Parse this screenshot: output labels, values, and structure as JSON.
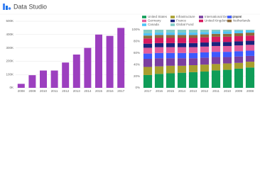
{
  "header": {
    "title": "Data Studio"
  },
  "chart_data": [
    {
      "type": "bar",
      "color": "#9c3fbf",
      "categories": [
        "2008",
        "2009",
        "2010",
        "2011",
        "2012",
        "2013",
        "2014",
        "2015",
        "2016",
        "2017"
      ],
      "values": [
        30000,
        95000,
        130000,
        130000,
        190000,
        250000,
        300000,
        400000,
        390000,
        450000
      ],
      "ylim": [
        0,
        500000
      ],
      "yticks": [
        {
          "value": 0,
          "label": "0K"
        },
        {
          "value": 100000,
          "label": "100K"
        },
        {
          "value": 200000,
          "label": "200K"
        },
        {
          "value": 300000,
          "label": "300K"
        },
        {
          "value": 400000,
          "label": "400K"
        },
        {
          "value": 500000,
          "label": "500K"
        }
      ],
      "grid": true
    },
    {
      "type": "bar",
      "stacked": true,
      "legend": "top",
      "categories": [
        "2017",
        "2016",
        "2015",
        "2014",
        "2013",
        "2012",
        "2011",
        "2010",
        "2009",
        "2008"
      ],
      "series": [
        {
          "name": "United States",
          "color": "#0f9d58",
          "values": [
            22,
            24,
            25,
            26,
            27,
            28,
            30,
            31,
            33,
            35
          ]
        },
        {
          "name": "Infrastructure",
          "color": "#a89f2e",
          "values": [
            14,
            13,
            13,
            12,
            12,
            12,
            11,
            11,
            10,
            10
          ]
        },
        {
          "name": "International Development",
          "color": "#7b3fa0",
          "values": [
            14,
            14,
            13,
            13,
            12,
            12,
            12,
            11,
            11,
            10
          ]
        },
        {
          "name": "Japan",
          "color": "#3d5afe",
          "values": [
            9,
            9,
            9,
            9,
            9,
            9,
            9,
            9,
            9,
            9
          ]
        },
        {
          "name": "Germany",
          "color": "#e35d9b",
          "values": [
            10,
            10,
            10,
            10,
            10,
            10,
            10,
            10,
            10,
            10
          ]
        },
        {
          "name": "France",
          "color": "#1a237e",
          "values": [
            7,
            7,
            7,
            7,
            7,
            7,
            7,
            7,
            7,
            7
          ]
        },
        {
          "name": "United Kingdom",
          "color": "#d81b60",
          "values": [
            9,
            9,
            9,
            9,
            9,
            9,
            9,
            9,
            9,
            9
          ]
        },
        {
          "name": "Netherlands",
          "color": "#8e6c3c",
          "values": [
            5,
            5,
            5,
            5,
            5,
            5,
            5,
            5,
            5,
            5
          ]
        },
        {
          "name": "Canada",
          "color": "#4fc3f7",
          "values": [
            4,
            4,
            4,
            4,
            4,
            4,
            4,
            4,
            4,
            4
          ]
        },
        {
          "name": "Global Fund",
          "color": "#80cbc4",
          "values": [
            6,
            5,
            5,
            5,
            5,
            4,
            3,
            3,
            2,
            1
          ]
        }
      ],
      "ylim": [
        0,
        100
      ],
      "yticks": [
        {
          "value": 0,
          "label": "0%"
        },
        {
          "value": 20,
          "label": "20%"
        },
        {
          "value": 40,
          "label": "40%"
        },
        {
          "value": 60,
          "label": "60%"
        },
        {
          "value": 80,
          "label": "80%"
        },
        {
          "value": 100,
          "label": "100%"
        }
      ],
      "grid": true
    }
  ]
}
